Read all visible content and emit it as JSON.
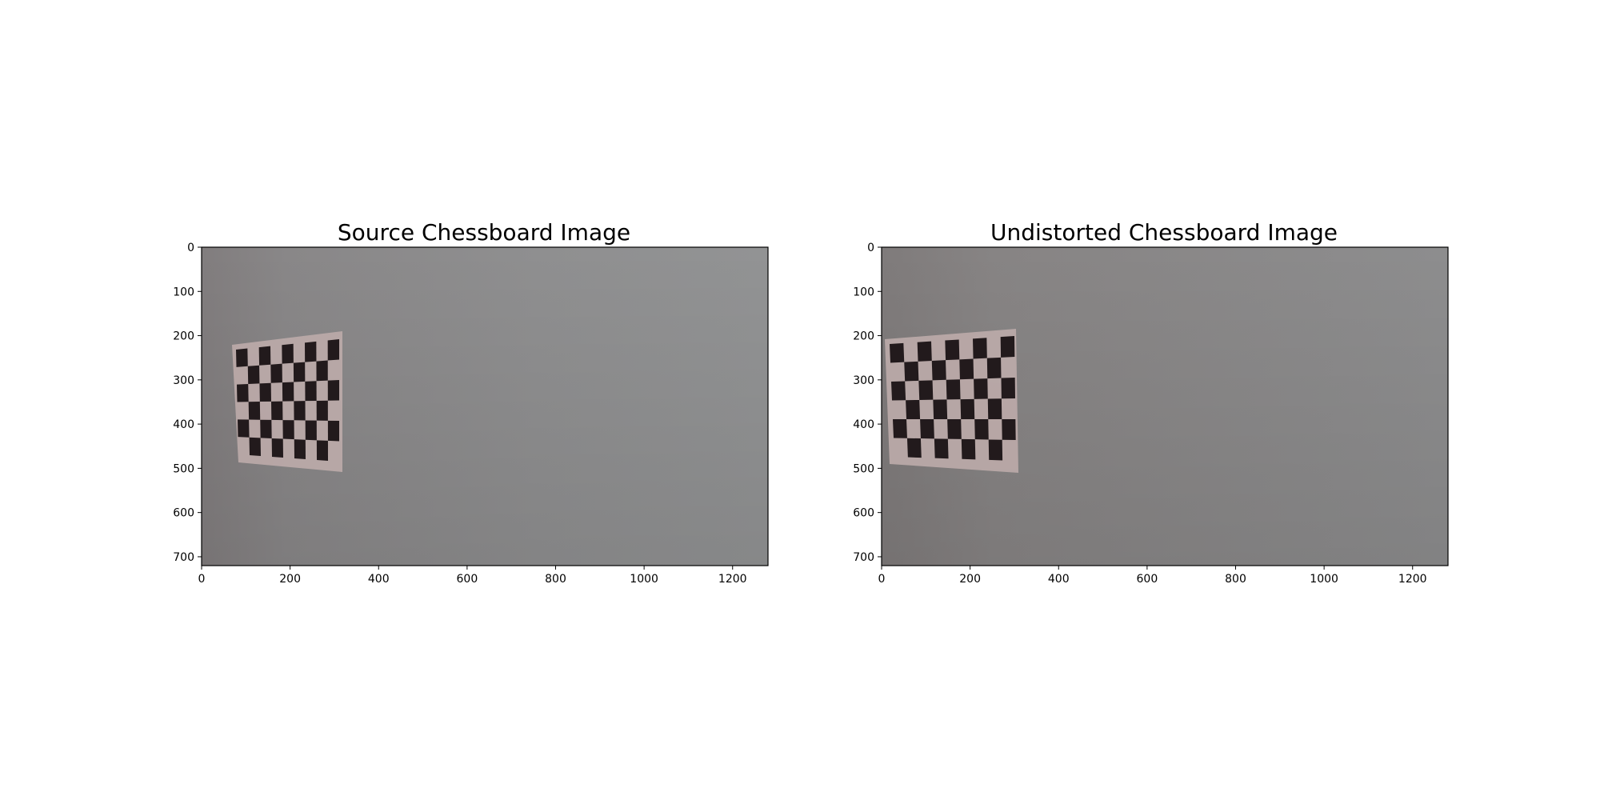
{
  "panels": [
    {
      "title": "Source Chessboard Image",
      "x_ticks": [
        "0",
        "200",
        "400",
        "600",
        "800",
        "1000",
        "1200"
      ],
      "y_ticks": [
        "0",
        "100",
        "200",
        "300",
        "400",
        "500",
        "600",
        "700"
      ],
      "photo_subject": "chessboard-calibration-photo"
    },
    {
      "title": "Undistorted Chessboard Image",
      "x_ticks": [
        "0",
        "200",
        "400",
        "600",
        "800",
        "1000",
        "1200"
      ],
      "y_ticks": [
        "0",
        "100",
        "200",
        "300",
        "400",
        "500",
        "600",
        "700"
      ],
      "photo_subject": "chessboard-calibration-photo"
    }
  ],
  "colors": {
    "wall": "#8e8e8e",
    "wall_edge": "#7d7979",
    "paper": "#b9a9a8",
    "square_dark": "#221a1c",
    "square_light": "#c2b3b2"
  }
}
